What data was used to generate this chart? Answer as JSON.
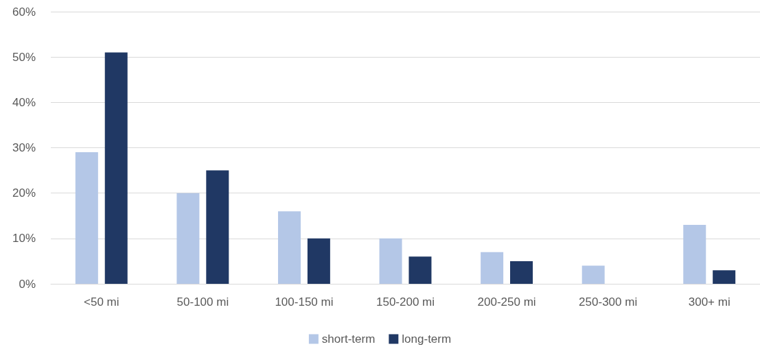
{
  "chart_data": {
    "type": "bar",
    "categories": [
      "<50 mi",
      "50-100 mi",
      "100-150 mi",
      "150-200 mi",
      "200-250 mi",
      "250-300 mi",
      "300+ mi"
    ],
    "series": [
      {
        "name": "short-term",
        "color": "#b4c7e7",
        "values": [
          29,
          20,
          16,
          10,
          7,
          4,
          13
        ]
      },
      {
        "name": "long-term",
        "color": "#203864",
        "values": [
          51,
          25,
          10,
          6,
          5,
          0,
          3
        ]
      }
    ],
    "ylim": [
      0,
      60
    ],
    "yticks": [
      {
        "value": 0,
        "label": "0%"
      },
      {
        "value": 10,
        "label": "10%"
      },
      {
        "value": 20,
        "label": "20%"
      },
      {
        "value": 30,
        "label": "30%"
      },
      {
        "value": 40,
        "label": "40%"
      },
      {
        "value": 50,
        "label": "50%"
      },
      {
        "value": 60,
        "label": "60%"
      }
    ],
    "grid": "y",
    "legend": "bottom"
  }
}
